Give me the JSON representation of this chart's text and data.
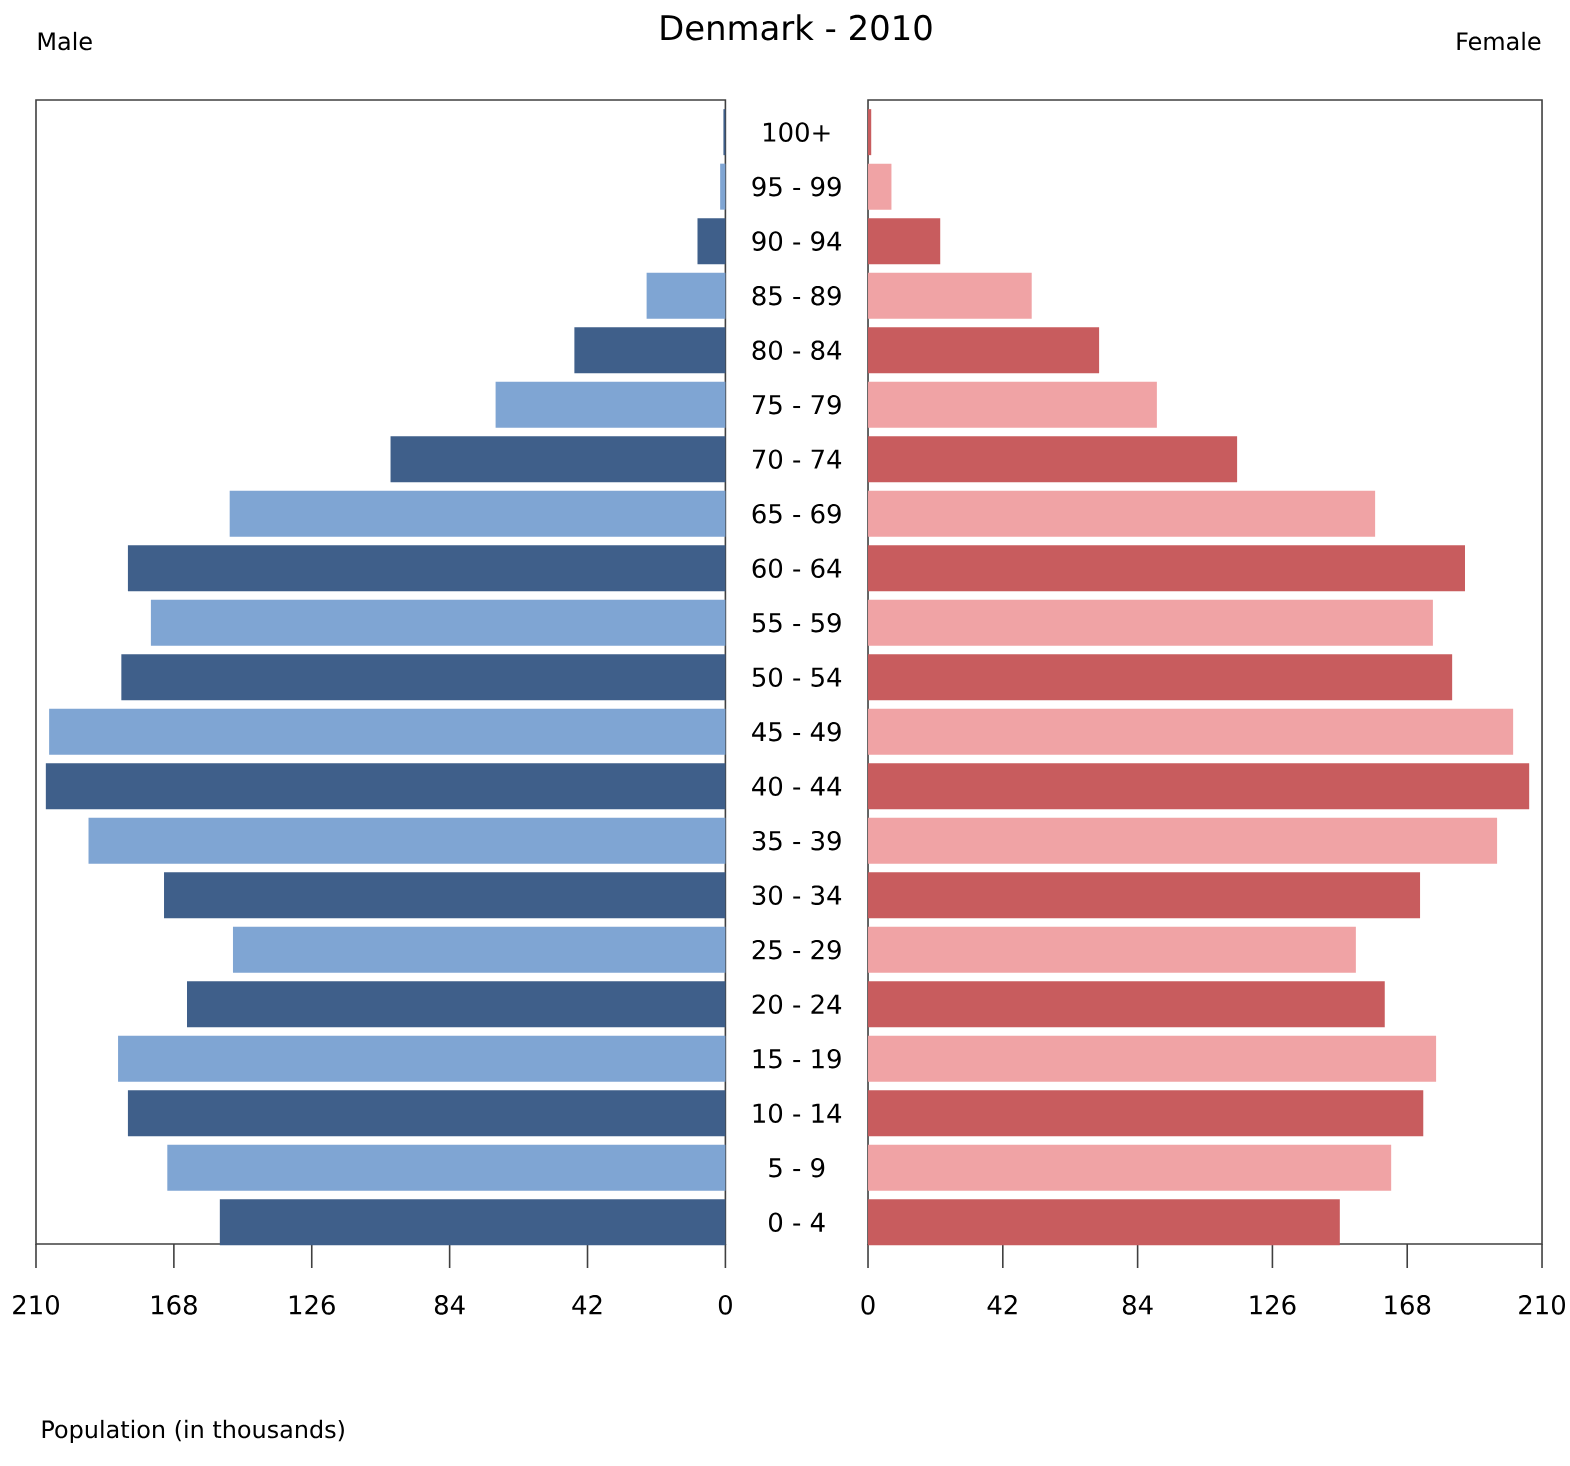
{
  "chart_data": [
    {
      "type": "bar",
      "orientation": "horizontal",
      "title": "Denmark - 2010",
      "annotations": [
        "Male"
      ],
      "xlabel": "Population (in thousands)",
      "categories": [
        "100+",
        "95 - 99",
        "90 - 94",
        "85 - 89",
        "80 - 84",
        "75 - 79",
        "70 - 74",
        "65 - 69",
        "60 - 64",
        "55 - 59",
        "50 - 54",
        "45 - 49",
        "40 - 44",
        "35 - 39",
        "30 - 34",
        "25 - 29",
        "20 - 24",
        "15 - 19",
        "10 - 14",
        "5 - 9",
        "0 - 4"
      ],
      "values": [
        0.6,
        1.6,
        8.5,
        24,
        46,
        70,
        102,
        151,
        182,
        175,
        184,
        206,
        207,
        194,
        171,
        150,
        164,
        185,
        182,
        170,
        154
      ],
      "colors": [
        "#3f5f8a",
        "#7fa5d3",
        "#3f5f8a",
        "#7fa5d3",
        "#3f5f8a",
        "#7fa5d3",
        "#3f5f8a",
        "#7fa5d3",
        "#3f5f8a",
        "#7fa5d3",
        "#3f5f8a",
        "#7fa5d3",
        "#3f5f8a",
        "#7fa5d3",
        "#3f5f8a",
        "#7fa5d3",
        "#3f5f8a",
        "#7fa5d3",
        "#3f5f8a",
        "#7fa5d3",
        "#3f5f8a"
      ],
      "xlim": [
        210,
        0
      ],
      "xticks": [
        210,
        168,
        126,
        84,
        42,
        0
      ]
    },
    {
      "type": "bar",
      "orientation": "horizontal",
      "annotations": [
        "Female"
      ],
      "tick_labels": "x",
      "values": [
        1,
        7.3,
        22.5,
        51,
        72,
        90,
        115,
        158,
        186,
        176,
        182,
        201,
        206,
        196,
        172,
        152,
        161,
        177,
        173,
        163,
        147
      ],
      "colors": [
        "#c85c5e",
        "#f0a3a5",
        "#c85c5e",
        "#f0a3a5",
        "#c85c5e",
        "#f0a3a5",
        "#c85c5e",
        "#f0a3a5",
        "#c85c5e",
        "#f0a3a5",
        "#c85c5e",
        "#f0a3a5",
        "#c85c5e",
        "#f0a3a5",
        "#c85c5e",
        "#f0a3a5",
        "#c85c5e",
        "#f0a3a5",
        "#c85c5e",
        "#f0a3a5",
        "#c85c5e"
      ],
      "xlim": [
        0,
        210
      ],
      "xticks": [
        0,
        42,
        84,
        126,
        168,
        210
      ]
    }
  ]
}
